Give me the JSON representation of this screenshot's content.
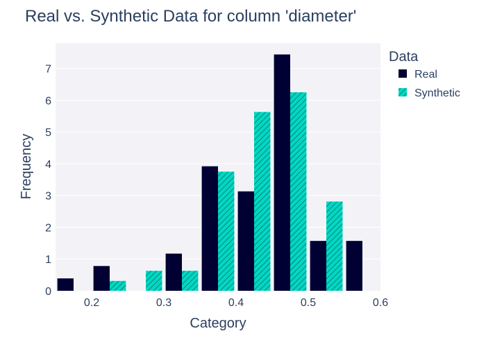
{
  "colors": {
    "background": "#ffffff",
    "plot_background": "#f3f3f7",
    "grid": "#ffffff",
    "text": "#2a3f5f"
  },
  "chart_data": {
    "type": "bar",
    "title": "Real vs. Synthetic Data for column 'diameter'",
    "xlabel": "Category",
    "ylabel": "Frequency",
    "xlim": [
      0.15,
      0.6
    ],
    "ylim": [
      0,
      7.8
    ],
    "x_ticks": [
      0.2,
      0.3,
      0.4,
      0.5,
      0.6
    ],
    "y_ticks": [
      0,
      1,
      2,
      3,
      4,
      5,
      6,
      7
    ],
    "grid": true,
    "legend": {
      "title": "Data",
      "placement": "right"
    },
    "bin_size": 0.05,
    "bin_starts": [
      0.15,
      0.2,
      0.25,
      0.3,
      0.35,
      0.4,
      0.45,
      0.5,
      0.55
    ],
    "series": [
      {
        "name": "Real",
        "color": "#000033",
        "pattern": "none",
        "values": [
          0.39,
          0.78,
          0,
          1.17,
          3.92,
          3.13,
          7.44,
          1.57,
          1.57
        ]
      },
      {
        "name": "Synthetic",
        "color": "#00d9c0",
        "pattern": "diagonal-hatch",
        "values": [
          0,
          0.31,
          0.63,
          0.63,
          3.75,
          5.63,
          6.25,
          2.81,
          0
        ]
      }
    ]
  }
}
